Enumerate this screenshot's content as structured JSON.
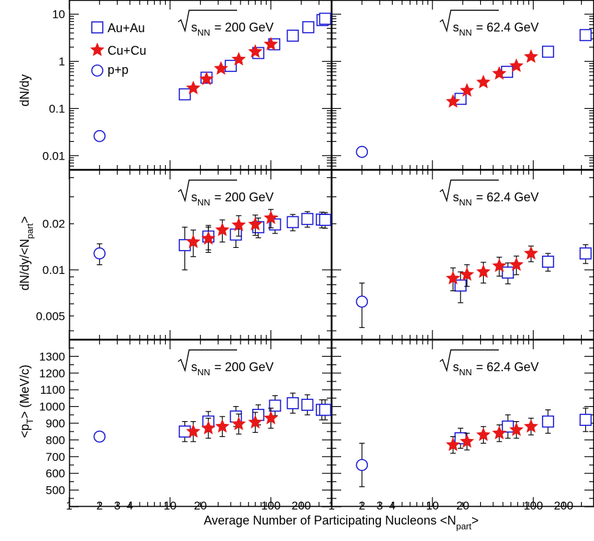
{
  "figure": {
    "xlabel_main": "Average Number of Participating Nucleons <N",
    "xlabel_sub": "part",
    "xlabel_end": ">",
    "x_tick_labels": [
      "1",
      "2",
      "3",
      "4",
      "10",
      "20",
      "100",
      "200"
    ],
    "legend": {
      "auau": "Au+Au",
      "cucu": "Cu+Cu",
      "pp": "p+p"
    },
    "energy_text": {
      "e200": "= 200 GeV",
      "e62": "= 62.4 GeV",
      "s": "s",
      "sub": "NN"
    },
    "colors": {
      "auau": "#1a1ad6",
      "cucu": "#e81818",
      "pp": "#1a1ad6",
      "axis": "#000000"
    }
  },
  "chart_data": [
    {
      "type": "scatter",
      "panel": "dN/dy, 200 GeV",
      "ylabel": "dN/dy",
      "xscale": "log",
      "yscale": "log",
      "xlim": [
        1,
        400
      ],
      "ylim": [
        0.005,
        20
      ],
      "y_tick_labels": [
        "0.01",
        "0.1",
        "1",
        "10"
      ],
      "energy": "200 GeV",
      "legend_position": "top-left",
      "series": [
        {
          "name": "Au+Au",
          "marker": "open-square",
          "x": [
            14,
            23,
            40,
            75,
            108,
            165,
            235,
            325,
            345
          ],
          "y": [
            0.2,
            0.45,
            0.8,
            1.5,
            2.3,
            3.5,
            5.3,
            7.5,
            8.0
          ]
        },
        {
          "name": "Cu+Cu",
          "marker": "filled-star",
          "x": [
            17,
            23,
            32,
            48,
            70,
            100
          ],
          "y": [
            0.27,
            0.42,
            0.7,
            1.1,
            1.6,
            2.3
          ]
        },
        {
          "name": "p+p",
          "marker": "open-circle",
          "x": [
            2
          ],
          "y": [
            0.026
          ]
        }
      ]
    },
    {
      "type": "scatter",
      "panel": "dN/dy, 62.4 GeV",
      "ylabel": "dN/dy",
      "xscale": "log",
      "yscale": "log",
      "xlim": [
        1,
        400
      ],
      "ylim": [
        0.005,
        20
      ],
      "y_tick_labels": [],
      "energy": "62.4 GeV",
      "series": [
        {
          "name": "Au+Au",
          "marker": "open-square",
          "x": [
            19,
            55,
            140,
            330
          ],
          "y": [
            0.16,
            0.6,
            1.6,
            3.6
          ]
        },
        {
          "name": "Cu+Cu",
          "marker": "filled-star",
          "x": [
            16,
            22,
            32,
            46,
            68,
            95
          ],
          "y": [
            0.14,
            0.24,
            0.36,
            0.55,
            0.8,
            1.25
          ]
        },
        {
          "name": "p+p",
          "marker": "open-circle",
          "x": [
            2
          ],
          "y": [
            0.012
          ]
        }
      ]
    },
    {
      "type": "scatter",
      "panel": "dN/dy/<Npart>, 200 GeV",
      "ylabel": "dN/dy/<N",
      "ylabel_sub": "part",
      "ylabel_end": ">",
      "xscale": "log",
      "yscale": "log",
      "xlim": [
        1,
        400
      ],
      "ylim": [
        0.0035,
        0.045
      ],
      "y_tick_labels": [
        "0.005",
        "0.01",
        "0.02"
      ],
      "energy": "200 GeV",
      "series": [
        {
          "name": "Au+Au",
          "marker": "open-square",
          "x": [
            14,
            24,
            45,
            75,
            110,
            165,
            230,
            320,
            345
          ],
          "y": [
            0.0145,
            0.0165,
            0.017,
            0.019,
            0.0198,
            0.0205,
            0.0215,
            0.0213,
            0.0212
          ],
          "err": [
            0.0045,
            0.003,
            0.003,
            0.0028,
            0.0025,
            0.0025,
            0.0025,
            0.0025,
            0.0025
          ]
        },
        {
          "name": "Cu+Cu",
          "marker": "filled-star",
          "x": [
            17,
            24,
            33,
            48,
            70,
            100
          ],
          "y": [
            0.0152,
            0.016,
            0.0182,
            0.0196,
            0.0198,
            0.0218
          ],
          "err": [
            0.003,
            0.003,
            0.003,
            0.003,
            0.003,
            0.003
          ]
        },
        {
          "name": "p+p",
          "marker": "open-circle",
          "x": [
            2
          ],
          "y": [
            0.0128
          ],
          "err": [
            0.002
          ]
        }
      ]
    },
    {
      "type": "scatter",
      "panel": "dN/dy/<Npart>, 62.4 GeV",
      "ylabel": "dN/dy/<N",
      "xscale": "log",
      "yscale": "log",
      "xlim": [
        1,
        400
      ],
      "ylim": [
        0.0035,
        0.045
      ],
      "y_tick_labels": [],
      "energy": "62.4 GeV",
      "series": [
        {
          "name": "Au+Au",
          "marker": "open-square",
          "x": [
            19,
            56,
            140,
            330
          ],
          "y": [
            0.0079,
            0.0096,
            0.0113,
            0.0128
          ],
          "err": [
            0.0018,
            0.0015,
            0.0015,
            0.0018
          ]
        },
        {
          "name": "Cu+Cu",
          "marker": "filled-star",
          "x": [
            16,
            22,
            32,
            46,
            68,
            95
          ],
          "y": [
            0.0088,
            0.0093,
            0.0097,
            0.0106,
            0.0108,
            0.0128
          ],
          "err": [
            0.0015,
            0.0015,
            0.0015,
            0.0015,
            0.0015,
            0.0015
          ]
        },
        {
          "name": "p+p",
          "marker": "open-circle",
          "x": [
            2
          ],
          "y": [
            0.0062
          ],
          "err": [
            0.002
          ]
        }
      ]
    },
    {
      "type": "scatter",
      "panel": "<pT>, 200 GeV",
      "ylabel": "<p",
      "ylabel_sub": "T",
      "ylabel_end": "> (MeV/c)",
      "xscale": "log",
      "yscale": "linear",
      "xlim": [
        1,
        400
      ],
      "ylim": [
        400,
        1400
      ],
      "y_tick_labels": [
        "500",
        "600",
        "700",
        "800",
        "900",
        "1000",
        "1100",
        "1200",
        "1300"
      ],
      "energy": "200 GeV",
      "series": [
        {
          "name": "Au+Au",
          "marker": "open-square",
          "x": [
            14,
            24,
            45,
            75,
            110,
            165,
            230,
            320,
            345
          ],
          "y": [
            850,
            910,
            940,
            950,
            1005,
            1020,
            1010,
            980,
            980
          ],
          "err": [
            60,
            60,
            60,
            60,
            60,
            60,
            60,
            60,
            60
          ]
        },
        {
          "name": "Cu+Cu",
          "marker": "filled-star",
          "x": [
            17,
            24,
            33,
            48,
            70,
            100
          ],
          "y": [
            850,
            870,
            880,
            895,
            905,
            930
          ],
          "err": [
            60,
            60,
            60,
            60,
            60,
            60
          ]
        },
        {
          "name": "p+p",
          "marker": "open-circle",
          "x": [
            2
          ],
          "y": [
            820
          ],
          "err": [
            30
          ]
        }
      ]
    },
    {
      "type": "scatter",
      "panel": "<pT>, 62.4 GeV",
      "ylabel": "<p",
      "xscale": "log",
      "yscale": "linear",
      "xlim": [
        1,
        400
      ],
      "ylim": [
        400,
        1400
      ],
      "y_tick_labels": [],
      "energy": "62.4 GeV",
      "series": [
        {
          "name": "Au+Au",
          "marker": "open-square",
          "x": [
            19,
            56,
            140,
            330
          ],
          "y": [
            810,
            880,
            910,
            920
          ],
          "err": [
            60,
            70,
            70,
            70
          ]
        },
        {
          "name": "Cu+Cu",
          "marker": "filled-star",
          "x": [
            16,
            22,
            32,
            46,
            68,
            95
          ],
          "y": [
            770,
            790,
            830,
            840,
            860,
            880
          ],
          "err": [
            50,
            50,
            50,
            50,
            50,
            50
          ]
        },
        {
          "name": "p+p",
          "marker": "open-circle",
          "x": [
            2
          ],
          "y": [
            650
          ],
          "err": [
            130
          ]
        }
      ]
    }
  ]
}
